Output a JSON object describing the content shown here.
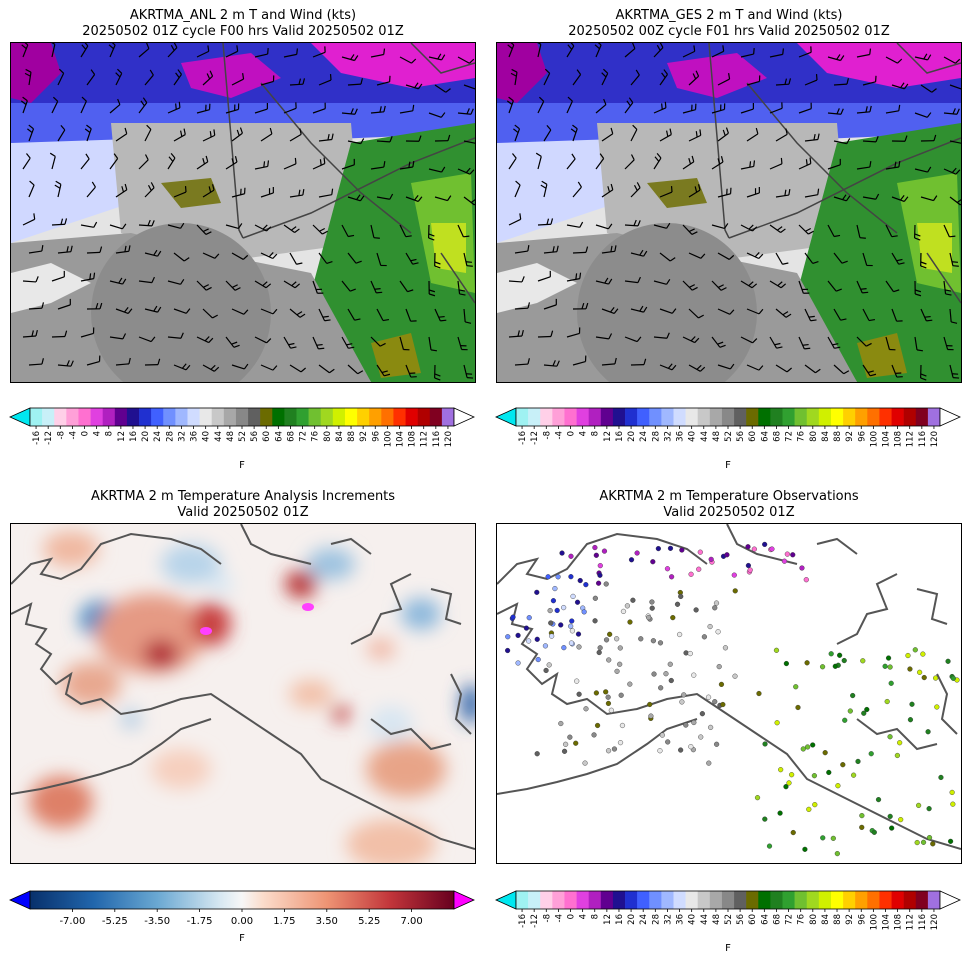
{
  "panels": [
    {
      "id": "anl",
      "title_line1": "AKRTMA_ANL 2 m T and Wind (kts)",
      "title_line2": "20250502 01Z cycle F00 hrs Valid 20250502 01Z"
    },
    {
      "id": "ges",
      "title_line1": "AKRTMA_GES 2 m T and Wind (kts)",
      "title_line2": "20250502 00Z cycle F01 hrs Valid 20250502 01Z"
    },
    {
      "id": "inc",
      "title_line1": "AKRTMA 2 m Temperature Analysis Increments",
      "title_line2": "Valid 20250502 01Z"
    },
    {
      "id": "obs",
      "title_line1": "AKRTMA 2 m Temperature Observations",
      "title_line2": "Valid 20250502 01Z"
    }
  ],
  "temp_colorbar": {
    "unit": "F",
    "ticks": [
      "-16",
      "-12",
      "-8",
      "-4",
      "0",
      "4",
      "8",
      "12",
      "16",
      "20",
      "24",
      "28",
      "32",
      "36",
      "40",
      "44",
      "48",
      "52",
      "56",
      "60",
      "64",
      "68",
      "72",
      "76",
      "80",
      "84",
      "88",
      "92",
      "96",
      "100",
      "104",
      "108",
      "112",
      "116",
      "120"
    ],
    "colors": [
      "#9ff2f2",
      "#c8f0f8",
      "#ffd0e8",
      "#ffa0d8",
      "#ff70d0",
      "#e040e0",
      "#b020c0",
      "#600090",
      "#201090",
      "#2030d0",
      "#4060ff",
      "#7090ff",
      "#a0b8ff",
      "#d0dcff",
      "#e8e8e8",
      "#c8c8c8",
      "#a8a8a8",
      "#888888",
      "#606060",
      "#6b6b00",
      "#007000",
      "#208020",
      "#30a030",
      "#70c030",
      "#a0d820",
      "#d0f000",
      "#ffff00",
      "#ffd000",
      "#ffa000",
      "#ff7000",
      "#ff3000",
      "#e00000",
      "#b00000",
      "#800020",
      "#a070e0"
    ],
    "under_color": "#00e8f0",
    "over_color": "#ffffff"
  },
  "incr_colorbar": {
    "unit": "F",
    "ticks": [
      "-7.00",
      "-5.25",
      "-3.50",
      "-1.75",
      "0.00",
      "1.75",
      "3.50",
      "5.25",
      "7.00"
    ],
    "under_color": "#0000ff",
    "over_color": "#ff00ff"
  }
}
